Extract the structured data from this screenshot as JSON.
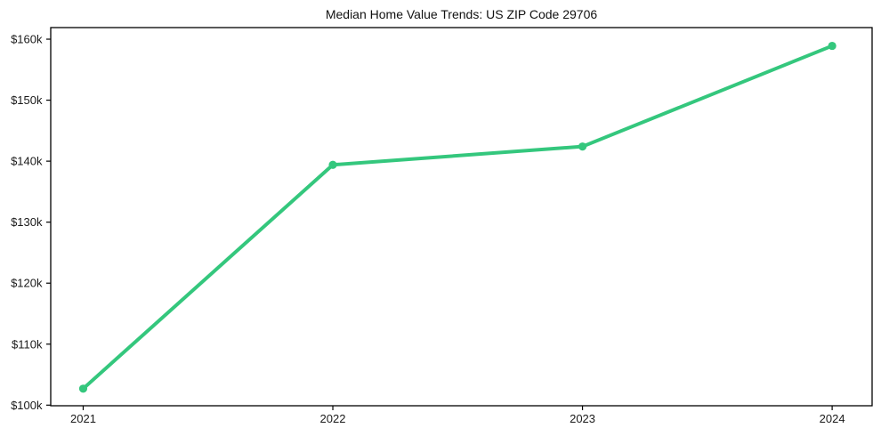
{
  "chart_data": {
    "type": "line",
    "title": "Median Home Value Trends: US ZIP Code 29706",
    "x": [
      "2021",
      "2022",
      "2023",
      "2024"
    ],
    "values": [
      102700,
      139400,
      142400,
      158900
    ],
    "xlabel": "",
    "ylabel": "",
    "xlim": [
      2020.87,
      2024.16
    ],
    "ylim": [
      99900,
      161900
    ],
    "x_numeric": [
      2021,
      2022,
      2023,
      2024
    ],
    "yticks": [
      100000,
      110000,
      120000,
      130000,
      140000,
      150000,
      160000
    ],
    "ytick_labels": [
      "$100k",
      "$110k",
      "$120k",
      "$130k",
      "$140k",
      "$150k",
      "$160k"
    ],
    "xtick_labels": [
      "2021",
      "2022",
      "2023",
      "2024"
    ],
    "grid": false,
    "legend": "none",
    "line_color": "#34c77d",
    "marker": "circle",
    "axis_color": "#000000",
    "tick_label_color": "#1a1a1a",
    "title_color": "#111111",
    "background": "#ffffff"
  }
}
